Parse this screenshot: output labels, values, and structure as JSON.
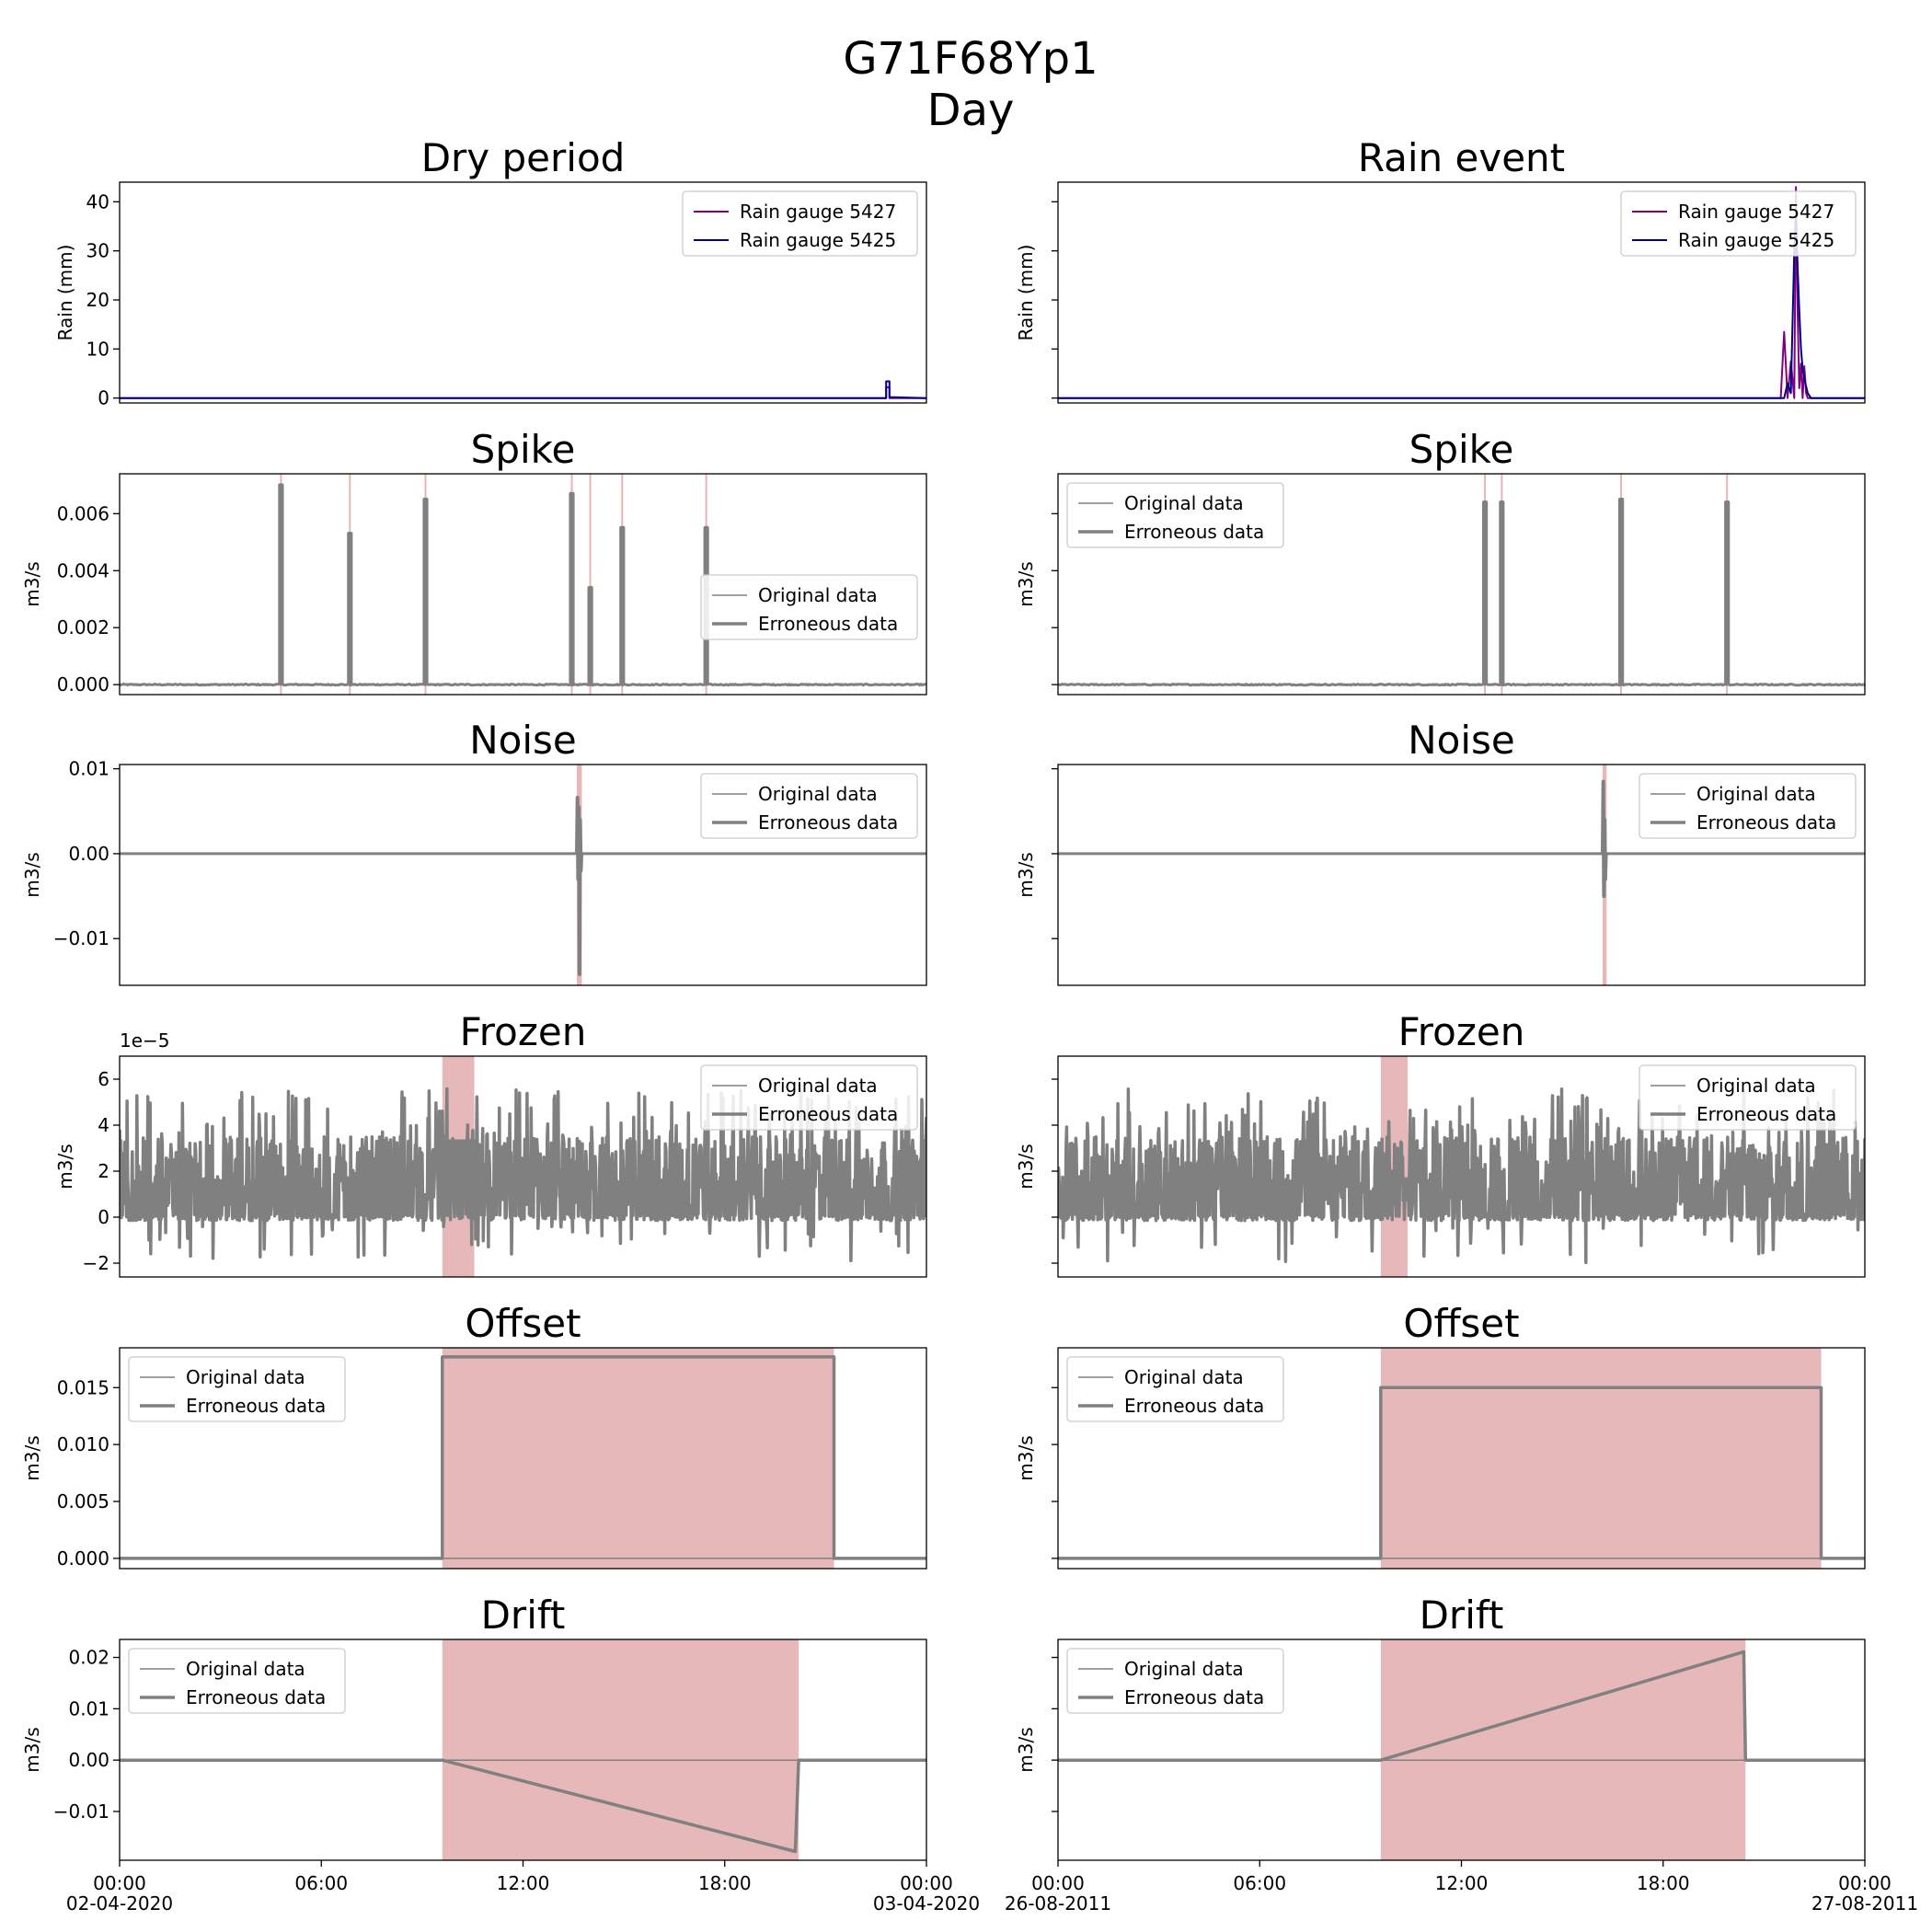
{
  "figure": {
    "title_line1": "G71F68Yp1",
    "title_line2": "Day"
  },
  "chart_data": [
    {
      "type": "line",
      "id": "rain-dry",
      "title": "Dry period",
      "ylabel": "Rain (mm)",
      "ylim": [
        -1,
        44
      ],
      "yticks": [
        0,
        10,
        20,
        30,
        40
      ],
      "ytick_labels": [
        "0",
        "10",
        "20",
        "30",
        "40"
      ],
      "legend": "top-right",
      "series": [
        {
          "name": "Rain gauge 5427",
          "color": "#800080",
          "x": [
            0,
            22.8,
            22.8,
            22.9,
            22.9,
            24
          ],
          "y": [
            0,
            0,
            2.2,
            2.2,
            0,
            0
          ]
        },
        {
          "name": "Rain gauge 5425",
          "color": "#000080",
          "x": [
            0,
            22.8,
            22.8,
            22.9,
            22.9,
            24
          ],
          "y": [
            0,
            0,
            3.4,
            3.4,
            0.2,
            0
          ]
        }
      ]
    },
    {
      "type": "line",
      "id": "rain-event",
      "title": "Rain event",
      "ylabel": "Rain (mm)",
      "ylim": [
        -1,
        44
      ],
      "yticks": [
        0,
        10,
        20,
        30,
        40
      ],
      "ytick_labels": [
        "",
        "",
        "",
        "",
        ""
      ],
      "legend": "top-right",
      "series": [
        {
          "name": "Rain gauge 5427",
          "color": "#800080",
          "x": [
            0,
            21.5,
            21.6,
            21.7,
            21.8,
            21.9,
            21.95,
            22.0,
            22.05,
            22.1,
            22.15,
            22.2,
            22.25,
            22.3,
            22.4,
            24
          ],
          "y": [
            0,
            0,
            13.5,
            0,
            7.5,
            0,
            43,
            18,
            2,
            7,
            0,
            6.5,
            1,
            0,
            0,
            0
          ]
        },
        {
          "name": "Rain gauge 5425",
          "color": "#000080",
          "x": [
            0,
            21.6,
            21.7,
            21.8,
            21.9,
            21.95,
            22.0,
            22.05,
            22.1,
            22.15,
            22.2,
            22.3,
            22.4,
            24
          ],
          "y": [
            0,
            0,
            3,
            1,
            30,
            38,
            27,
            18,
            10,
            6,
            4,
            1,
            0,
            0
          ]
        }
      ]
    },
    {
      "type": "line",
      "id": "spike-dry",
      "title": "Spike",
      "ylabel": "m3/s",
      "ylim": [
        -0.00035,
        0.0074
      ],
      "yticks": [
        0,
        0.002,
        0.004,
        0.006
      ],
      "ytick_labels": [
        "0.000",
        "0.002",
        "0.004",
        "0.006"
      ],
      "legend": "center-right",
      "events": [
        4.8,
        6.85,
        9.1,
        13.45,
        14.0,
        14.95,
        17.45
      ],
      "event_values": [
        0.007,
        0.0053,
        0.0065,
        0.0067,
        0.0034,
        0.0055,
        0.0055
      ],
      "series": [
        {
          "name": "Original data",
          "color": "#808080"
        },
        {
          "name": "Erroneous data",
          "color": "#808080"
        }
      ]
    },
    {
      "type": "line",
      "id": "spike-rain",
      "title": "Spike",
      "ylabel": "m3/s",
      "ylim": [
        -0.00035,
        0.0074
      ],
      "yticks": [
        0,
        0.002,
        0.004,
        0.006
      ],
      "ytick_labels": [
        "",
        "",
        "",
        ""
      ],
      "legend": "top-left",
      "events": [
        12.7,
        13.2,
        16.75,
        19.9
      ],
      "event_values": [
        0.0064,
        0.0064,
        0.0065,
        0.0064
      ],
      "series": [
        {
          "name": "Original data",
          "color": "#808080"
        },
        {
          "name": "Erroneous data",
          "color": "#808080"
        }
      ]
    },
    {
      "type": "line",
      "id": "noise-dry",
      "title": "Noise",
      "ylabel": "m3/s",
      "ylim": [
        -0.0155,
        0.0105
      ],
      "yticks": [
        -0.01,
        0,
        0.01
      ],
      "ytick_labels": [
        "−0.01",
        "0.00",
        "0.01"
      ],
      "legend": "top-right",
      "shade": [
        13.6,
        13.75
      ],
      "series": [
        {
          "name": "Original data",
          "color": "#808080"
        },
        {
          "name": "Erroneous data",
          "color": "#808080",
          "x": [
            13.6,
            13.62,
            13.64,
            13.66,
            13.68,
            13.7,
            13.72,
            13.74
          ],
          "y": [
            0,
            0.0066,
            -0.003,
            0.0055,
            -0.0142,
            0.004,
            -0.002,
            0
          ]
        }
      ]
    },
    {
      "type": "line",
      "id": "noise-rain",
      "title": "Noise",
      "ylabel": "m3/s",
      "ylim": [
        -0.0155,
        0.0105
      ],
      "yticks": [
        -0.01,
        0,
        0.01
      ],
      "ytick_labels": [
        "",
        "",
        ""
      ],
      "legend": "top-right",
      "shade": [
        16.2,
        16.32
      ],
      "series": [
        {
          "name": "Original data",
          "color": "#808080"
        },
        {
          "name": "Erroneous data",
          "color": "#808080",
          "x": [
            16.2,
            16.22,
            16.24,
            16.26,
            16.28,
            16.3
          ],
          "y": [
            0,
            0.0085,
            -0.005,
            0.004,
            -0.003,
            0
          ]
        }
      ]
    },
    {
      "type": "line",
      "id": "frozen-dry",
      "title": "Frozen",
      "ylabel": "m3/s",
      "y_multiplier": "1e−5",
      "ylim": [
        -2.6,
        7.0
      ],
      "yticks": [
        -2,
        0,
        2,
        4,
        6
      ],
      "ytick_labels": [
        "−2",
        "0",
        "2",
        "4",
        "6"
      ],
      "legend": "top-right",
      "shade": [
        9.6,
        10.55
      ],
      "frozen_value": 3.3,
      "series": [
        {
          "name": "Original data",
          "color": "#808080"
        },
        {
          "name": "Erroneous data",
          "color": "#808080"
        }
      ]
    },
    {
      "type": "line",
      "id": "frozen-rain",
      "title": "Frozen",
      "ylabel": "m3/s",
      "ylim": [
        -2.6,
        7.0
      ],
      "yticks": [
        -2,
        0,
        2,
        4,
        6
      ],
      "ytick_labels": [
        "",
        "",
        "",
        "",
        ""
      ],
      "legend": "top-right",
      "shade": [
        9.6,
        10.4
      ],
      "frozen_value": 1.5,
      "series": [
        {
          "name": "Original data",
          "color": "#808080"
        },
        {
          "name": "Erroneous data",
          "color": "#808080"
        }
      ]
    },
    {
      "type": "line",
      "id": "offset-dry",
      "title": "Offset",
      "ylabel": "m3/s",
      "ylim": [
        -0.0009,
        0.0185
      ],
      "yticks": [
        0,
        0.005,
        0.01,
        0.015
      ],
      "ytick_labels": [
        "0.000",
        "0.005",
        "0.010",
        "0.015"
      ],
      "legend": "top-left",
      "shade": [
        9.6,
        21.25
      ],
      "series": [
        {
          "name": "Original data",
          "color": "#808080",
          "x": [
            0,
            24
          ],
          "y": [
            0,
            0
          ]
        },
        {
          "name": "Erroneous data",
          "color": "#808080",
          "x": [
            0,
            9.6,
            9.6,
            21.25,
            21.25,
            24
          ],
          "y": [
            0,
            0,
            0.0177,
            0.0177,
            0,
            0
          ]
        }
      ]
    },
    {
      "type": "line",
      "id": "offset-rain",
      "title": "Offset",
      "ylabel": "m3/s",
      "ylim": [
        -0.0009,
        0.0185
      ],
      "yticks": [
        0,
        0.005,
        0.01,
        0.015
      ],
      "ytick_labels": [
        "",
        "",
        "",
        ""
      ],
      "legend": "top-left",
      "shade": [
        9.6,
        22.7
      ],
      "series": [
        {
          "name": "Original data",
          "color": "#808080",
          "x": [
            0,
            24
          ],
          "y": [
            0,
            0
          ]
        },
        {
          "name": "Erroneous data",
          "color": "#808080",
          "x": [
            0,
            9.6,
            9.6,
            22.7,
            22.7,
            24
          ],
          "y": [
            0,
            0,
            0.015,
            0.015,
            0,
            0
          ]
        }
      ]
    },
    {
      "type": "line",
      "id": "drift-dry",
      "title": "Drift",
      "ylabel": "m3/s",
      "ylim": [
        -0.0195,
        0.0235
      ],
      "yticks": [
        -0.01,
        0,
        0.01,
        0.02
      ],
      "ytick_labels": [
        "−0.01",
        "0.00",
        "0.01",
        "0.02"
      ],
      "legend": "top-left",
      "shade": [
        9.6,
        20.2
      ],
      "xticks": [
        0,
        6,
        12,
        18,
        24
      ],
      "xtick_labels": [
        "00:00\n02-04-2020",
        "06:00",
        "12:00",
        "18:00",
        "00:00\n03-04-2020"
      ],
      "series": [
        {
          "name": "Original data",
          "color": "#808080",
          "x": [
            0,
            24
          ],
          "y": [
            0,
            0
          ]
        },
        {
          "name": "Erroneous data",
          "color": "#808080",
          "x": [
            0,
            9.6,
            20.1,
            20.2,
            24
          ],
          "y": [
            0,
            0,
            -0.0178,
            0,
            0
          ]
        }
      ]
    },
    {
      "type": "line",
      "id": "drift-rain",
      "title": "Drift",
      "ylabel": "m3/s",
      "ylim": [
        -0.0195,
        0.0235
      ],
      "yticks": [
        -0.01,
        0,
        0.01,
        0.02
      ],
      "ytick_labels": [
        "",
        "",
        "",
        ""
      ],
      "legend": "top-left",
      "shade": [
        9.6,
        20.45
      ],
      "xticks": [
        0,
        6,
        12,
        18,
        24
      ],
      "xtick_labels": [
        "00:00\n26-08-2011",
        "06:00",
        "12:00",
        "18:00",
        "00:00\n27-08-2011"
      ],
      "series": [
        {
          "name": "Original data",
          "color": "#808080",
          "x": [
            0,
            24
          ],
          "y": [
            0,
            0
          ]
        },
        {
          "name": "Erroneous data",
          "color": "#808080",
          "x": [
            0,
            9.6,
            20.4,
            20.45,
            24
          ],
          "y": [
            0,
            0,
            0.0211,
            0,
            0
          ]
        }
      ]
    }
  ]
}
